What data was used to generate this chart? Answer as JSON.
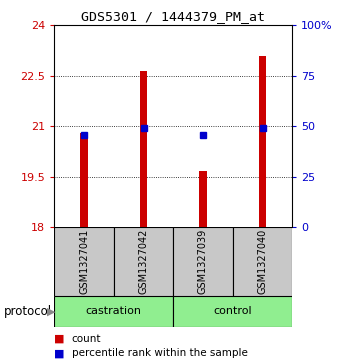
{
  "title": "GDS5301 / 1444379_PM_at",
  "samples": [
    "GSM1327041",
    "GSM1327042",
    "GSM1327039",
    "GSM1327040"
  ],
  "group_labels": [
    "castration",
    "control"
  ],
  "red_bar_tops": [
    20.8,
    22.65,
    19.65,
    23.1
  ],
  "blue_sq_values": [
    20.73,
    20.93,
    20.73,
    20.93
  ],
  "bar_bottom": 18.0,
  "ylim_left": [
    18,
    24
  ],
  "ylim_right": [
    0,
    100
  ],
  "yticks_left": [
    18,
    19.5,
    21,
    22.5,
    24
  ],
  "yticks_right": [
    0,
    25,
    50,
    75,
    100
  ],
  "ytick_labels_left": [
    "18",
    "19.5",
    "21",
    "22.5",
    "24"
  ],
  "ytick_labels_right": [
    "0",
    "25",
    "50",
    "75",
    "100%"
  ],
  "bar_color": "#CC0000",
  "dot_color": "#0000CC",
  "sample_bg_color": "#C8C8C8",
  "group_bg_color": "#90EE90",
  "legend_count_label": "count",
  "legend_pct_label": "percentile rank within the sample",
  "protocol_label": "protocol",
  "bar_width": 0.12
}
